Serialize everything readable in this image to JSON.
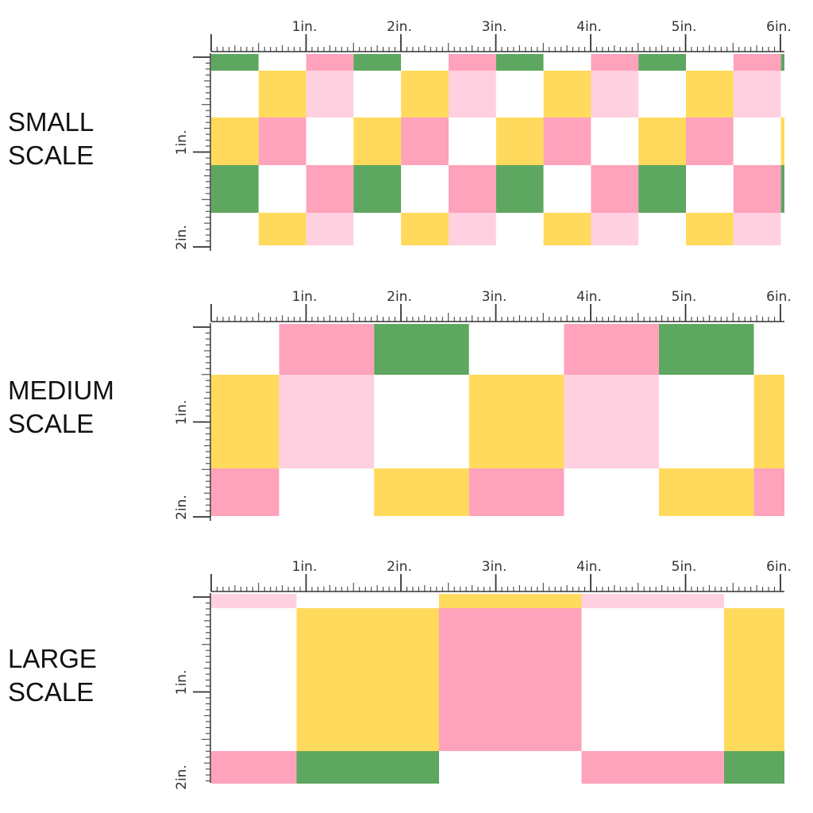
{
  "colors": {
    "green": "#5ea760",
    "yellow": "#ffda5c",
    "pink": "#ffa2bc",
    "lightpink": "#ffd0e0",
    "white": "#ffffff",
    "ruler": "#333333"
  },
  "ruler": {
    "top_labels": [
      "1in.",
      "2in.",
      "3in.",
      "4in.",
      "5in.",
      "6in."
    ],
    "side_labels": [
      "1in.",
      "2in."
    ]
  },
  "panels": [
    {
      "id": "small",
      "label_lines": [
        "SMALL",
        "SCALE"
      ],
      "rows": [
        [
          "green",
          "white",
          "pink",
          "green",
          "white",
          "pink",
          "green",
          "white",
          "pink",
          "green",
          "white",
          "pink",
          "green"
        ],
        [
          "white",
          "yellow",
          "lightpink",
          "white",
          "yellow",
          "lightpink",
          "white",
          "yellow",
          "lightpink",
          "white",
          "yellow",
          "lightpink",
          "white"
        ],
        [
          "yellow",
          "pink",
          "white",
          "yellow",
          "pink",
          "white",
          "yellow",
          "pink",
          "white",
          "yellow",
          "pink",
          "white",
          "yellow"
        ],
        [
          "green",
          "white",
          "pink",
          "green",
          "white",
          "pink",
          "green",
          "white",
          "pink",
          "green",
          "white",
          "pink",
          "green"
        ],
        [
          "white",
          "yellow",
          "lightpink",
          "white",
          "yellow",
          "lightpink",
          "white",
          "yellow",
          "lightpink",
          "white",
          "yellow",
          "lightpink",
          "white"
        ]
      ]
    },
    {
      "id": "medium",
      "label_lines": [
        "MEDIUM",
        "SCALE"
      ],
      "rows": [
        [
          "white",
          "pink",
          "green",
          "white",
          "pink",
          "green",
          "white"
        ],
        [
          "yellow",
          "lightpink",
          "white",
          "yellow",
          "lightpink",
          "white",
          "yellow"
        ],
        [
          "pink",
          "white",
          "yellow",
          "pink",
          "white",
          "yellow",
          "pink"
        ]
      ]
    },
    {
      "id": "large",
      "label_lines": [
        "LARGE",
        "SCALE"
      ],
      "rows": [
        [
          "lightpink",
          "white",
          "yellow",
          "lightpink",
          "white"
        ],
        [
          "white",
          "yellow",
          "pink",
          "white",
          "yellow"
        ],
        [
          "pink",
          "green",
          "white",
          "pink",
          "green"
        ]
      ]
    }
  ]
}
